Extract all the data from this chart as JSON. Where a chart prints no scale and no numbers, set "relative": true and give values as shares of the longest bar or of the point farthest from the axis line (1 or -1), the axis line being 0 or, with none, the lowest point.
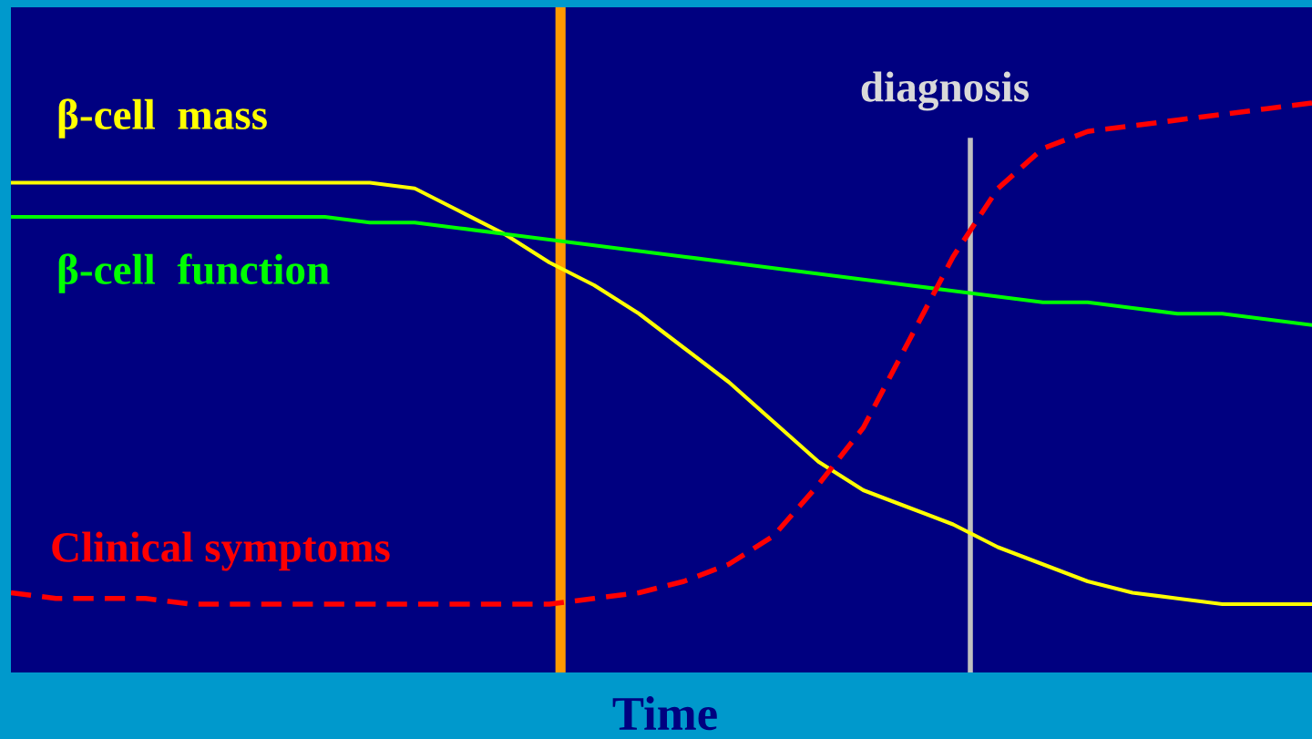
{
  "chart_data": {
    "type": "line",
    "relative": true,
    "xlabel": "Time",
    "annotations": [
      "diagnosis"
    ],
    "marker": "none",
    "categories": [
      null,
      null,
      null,
      null,
      null,
      null,
      null,
      null,
      null,
      null,
      null,
      null,
      null,
      null,
      null,
      null,
      null,
      null,
      null,
      null,
      null,
      null,
      null,
      null,
      null,
      null,
      null,
      null,
      null,
      null
    ],
    "series": [
      {
        "name": "β-cell  mass",
        "color": "#ffff00",
        "line_style": "solid",
        "values": [
          0.86,
          0.86,
          0.86,
          0.86,
          0.86,
          0.86,
          0.86,
          0.86,
          0.86,
          0.85,
          0.81,
          0.77,
          0.72,
          0.68,
          0.63,
          0.57,
          0.51,
          0.44,
          0.37,
          0.32,
          0.29,
          0.26,
          0.22,
          0.19,
          0.16,
          0.14,
          0.13,
          0.12,
          0.12,
          0.12
        ]
      },
      {
        "name": "β-cell  function",
        "color": "#00ff00",
        "line_style": "solid",
        "values": [
          0.8,
          0.8,
          0.8,
          0.8,
          0.8,
          0.8,
          0.8,
          0.8,
          0.79,
          0.79,
          0.78,
          0.77,
          0.76,
          0.75,
          0.74,
          0.73,
          0.72,
          0.71,
          0.7,
          0.69,
          0.68,
          0.67,
          0.66,
          0.65,
          0.65,
          0.64,
          0.63,
          0.63,
          0.62,
          0.61
        ]
      },
      {
        "name": "Clinical symptoms",
        "color": "#ff0000",
        "line_style": "dashed",
        "values": [
          0.14,
          0.13,
          0.13,
          0.13,
          0.12,
          0.12,
          0.12,
          0.12,
          0.12,
          0.12,
          0.12,
          0.12,
          0.12,
          0.13,
          0.14,
          0.16,
          0.19,
          0.24,
          0.33,
          0.43,
          0.58,
          0.73,
          0.85,
          0.92,
          0.95,
          0.96,
          0.97,
          0.98,
          0.99,
          1.0
        ]
      }
    ]
  }
}
